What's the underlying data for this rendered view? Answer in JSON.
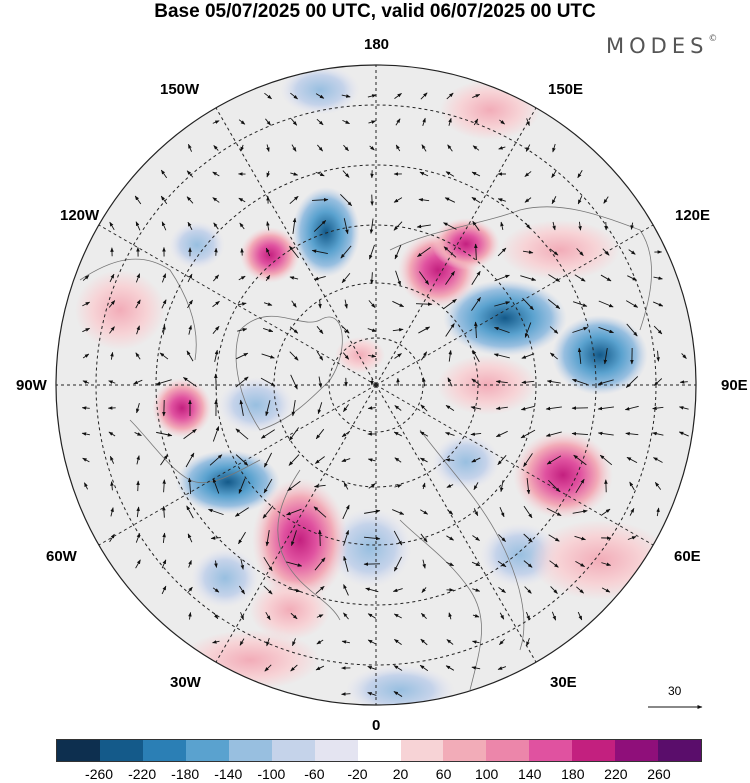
{
  "title": "Base 05/07/2025 00 UTC, valid 06/07/2025 00 UTC",
  "logo": {
    "text": "MODES",
    "mark": "©"
  },
  "longitude_labels": {
    "top": "180",
    "bottom": "0",
    "left": "90W",
    "right": "90E",
    "upper_left": "150W",
    "upper_right": "150E",
    "mid_upper_left": "120W",
    "mid_upper_right": "120E",
    "lower_left": "60W",
    "lower_right": "60E",
    "bottom_left": "30W",
    "bottom_right": "30E"
  },
  "reference_vector": {
    "label": "30"
  },
  "colorbar": {
    "colors": [
      "#0d2f4f",
      "#145a8a",
      "#2b7fb5",
      "#5aa2cf",
      "#98bfe0",
      "#c5d3ea",
      "#e4e4f1",
      "#ffffff",
      "#f7d3d6",
      "#f2acb8",
      "#ec86aa",
      "#e052a0",
      "#c3207f",
      "#8f0f7a",
      "#5a0d6b"
    ],
    "tick_labels": [
      "-260",
      "-220",
      "-180",
      "-140",
      "-100",
      "-60",
      "-20",
      "20",
      "60",
      "100",
      "140",
      "180",
      "220",
      "260"
    ]
  }
}
